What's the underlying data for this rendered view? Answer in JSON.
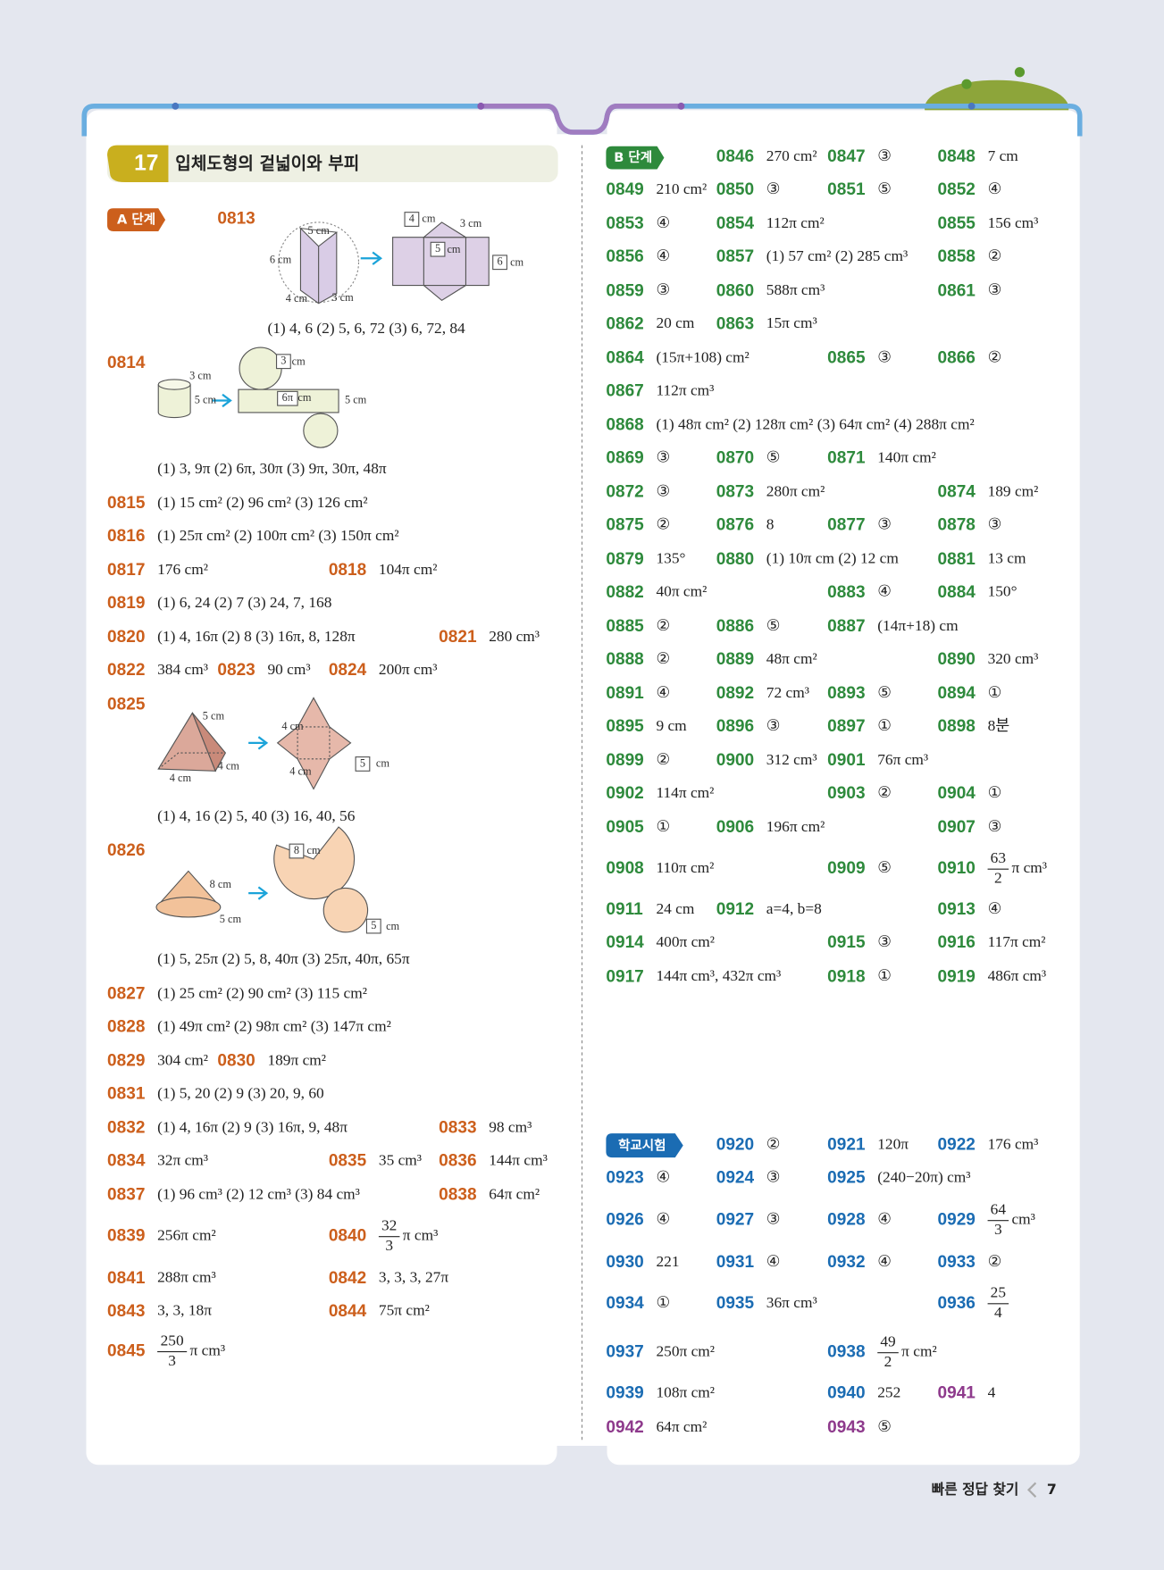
{
  "header": {
    "chapter": "17",
    "title": "입체도형의 겉넓이와 부피"
  },
  "section_a": {
    "badge": "A 단계",
    "color": "#cc5f1c",
    "items": [
      {
        "num": "0813",
        "answer": "(1) 4, 6  (2) 5, 6, 72  (3) 6, 72, 84",
        "figure": [
          "5 cm",
          "6 cm",
          "4 cm",
          "3 cm",
          "4",
          "cm",
          "3 cm",
          "5",
          "cm",
          "6",
          "cm"
        ]
      },
      {
        "num": "0814",
        "answer": "(1) 3, 9π  (2) 6π, 30π  (3) 9π, 30π, 48π",
        "figure": [
          "3 cm",
          "5 cm",
          "3",
          "cm",
          "6π",
          "cm",
          "5 cm"
        ]
      },
      {
        "num": "0815",
        "answer": "(1) 15 cm²  (2) 96 cm²  (3) 126 cm²"
      },
      {
        "num": "0816",
        "answer": "(1) 25π cm²  (2) 100π cm²  (3) 150π cm²"
      },
      {
        "num": "0817",
        "answer": "176 cm²"
      },
      {
        "num": "0818",
        "answer": "104π cm²"
      },
      {
        "num": "0819",
        "answer": "(1) 6, 24  (2) 7  (3) 24, 7, 168"
      },
      {
        "num": "0820",
        "answer": "(1) 4, 16π  (2) 8  (3) 16π, 8, 128π"
      },
      {
        "num": "0821",
        "answer": "280 cm³"
      },
      {
        "num": "0822",
        "answer": "384 cm³"
      },
      {
        "num": "0823",
        "answer": "90 cm³"
      },
      {
        "num": "0824",
        "answer": "200π cm³"
      },
      {
        "num": "0825",
        "answer": "(1) 4, 16  (2) 5, 40  (3) 16, 40, 56",
        "figure": [
          "5 cm",
          "4 cm",
          "4 cm",
          "4 cm",
          "4 cm",
          "5",
          "cm"
        ]
      },
      {
        "num": "0826",
        "answer": "(1) 5, 25π  (2) 5, 8, 40π  (3) 25π, 40π, 65π",
        "figure": [
          "8 cm",
          "5 cm",
          "8",
          "cm",
          "5",
          "cm"
        ]
      },
      {
        "num": "0827",
        "answer": "(1) 25 cm²  (2) 90 cm²  (3) 115 cm²"
      },
      {
        "num": "0828",
        "answer": "(1) 49π cm²  (2) 98π cm²  (3) 147π cm²"
      },
      {
        "num": "0829",
        "answer": "304 cm²"
      },
      {
        "num": "0830",
        "answer": "189π cm²"
      },
      {
        "num": "0831",
        "answer": "(1) 5, 20  (2) 9  (3) 20, 9, 60"
      },
      {
        "num": "0832",
        "answer": "(1) 4, 16π  (2) 9  (3) 16π, 9, 48π"
      },
      {
        "num": "0833",
        "answer": "98 cm³"
      },
      {
        "num": "0834",
        "answer": "32π cm³"
      },
      {
        "num": "0835",
        "answer": "35 cm³"
      },
      {
        "num": "0836",
        "answer": "144π cm³"
      },
      {
        "num": "0837",
        "answer": "(1) 96 cm³  (2) 12 cm³  (3) 84 cm³"
      },
      {
        "num": "0838",
        "answer": "64π cm²"
      },
      {
        "num": "0839",
        "answer": "256π cm²"
      },
      {
        "num": "0840",
        "answer": {
          "num": "32",
          "den": "3",
          "unit": "π cm³"
        }
      },
      {
        "num": "0841",
        "answer": "288π cm³"
      },
      {
        "num": "0842",
        "answer": "3, 3, 3, 27π"
      },
      {
        "num": "0843",
        "answer": "3, 3, 18π"
      },
      {
        "num": "0844",
        "answer": "75π cm²"
      },
      {
        "num": "0845",
        "answer": {
          "num": "250",
          "den": "3",
          "unit": "π cm³"
        }
      }
    ]
  },
  "section_b": {
    "badge": "B 단계",
    "color": "#2e8a3c",
    "rows": [
      [
        {
          "num": "0846",
          "answer": "270 cm²"
        },
        {
          "num": "0847",
          "answer": "③"
        },
        {
          "num": "0848",
          "answer": "7 cm"
        }
      ],
      [
        {
          "num": "0849",
          "answer": "210 cm²"
        },
        {
          "num": "0850",
          "answer": "③"
        },
        {
          "num": "0851",
          "answer": "⑤"
        },
        {
          "num": "0852",
          "answer": "④"
        }
      ],
      [
        {
          "num": "0853",
          "answer": "④"
        },
        {
          "num": "0854",
          "answer": "112π cm²"
        },
        {
          "num": "0855",
          "answer": "156 cm³"
        }
      ],
      [
        {
          "num": "0856",
          "answer": "④"
        },
        {
          "num": "0857",
          "answer": "(1) 57 cm²  (2) 285 cm³"
        },
        {
          "num": "0858",
          "answer": "②"
        }
      ],
      [
        {
          "num": "0859",
          "answer": "③"
        },
        {
          "num": "0860",
          "answer": "588π cm³"
        },
        {
          "num": "0861",
          "answer": "③"
        }
      ],
      [
        {
          "num": "0862",
          "answer": "20 cm"
        },
        {
          "num": "0863",
          "answer": "15π cm³"
        }
      ],
      [
        {
          "num": "0864",
          "answer": "(15π+108) cm²"
        },
        {
          "num": "0865",
          "answer": "③"
        },
        {
          "num": "0866",
          "answer": "②"
        }
      ],
      [
        {
          "num": "0867",
          "answer": "112π cm³"
        }
      ],
      [
        {
          "num": "0868",
          "answer": "(1) 48π cm²  (2) 128π cm²  (3) 64π cm²  (4) 288π cm²"
        }
      ],
      [
        {
          "num": "0869",
          "answer": "③"
        },
        {
          "num": "0870",
          "answer": "⑤"
        },
        {
          "num": "0871",
          "answer": "140π cm²"
        }
      ],
      [
        {
          "num": "0872",
          "answer": "③"
        },
        {
          "num": "0873",
          "answer": "280π cm²"
        },
        {
          "num": "0874",
          "answer": "189 cm²"
        }
      ],
      [
        {
          "num": "0875",
          "answer": "②"
        },
        {
          "num": "0876",
          "answer": "8"
        },
        {
          "num": "0877",
          "answer": "③"
        },
        {
          "num": "0878",
          "answer": "③"
        }
      ],
      [
        {
          "num": "0879",
          "answer": "135°"
        },
        {
          "num": "0880",
          "answer": "(1) 10π cm  (2) 12 cm"
        },
        {
          "num": "0881",
          "answer": "13 cm"
        }
      ],
      [
        {
          "num": "0882",
          "answer": "40π cm²"
        },
        {
          "num": "0883",
          "answer": "④"
        },
        {
          "num": "0884",
          "answer": "150°"
        }
      ],
      [
        {
          "num": "0885",
          "answer": "②"
        },
        {
          "num": "0886",
          "answer": "⑤"
        },
        {
          "num": "0887",
          "answer": "(14π+18) cm"
        }
      ],
      [
        {
          "num": "0888",
          "answer": "②"
        },
        {
          "num": "0889",
          "answer": "48π cm²"
        },
        {
          "num": "0890",
          "answer": "320 cm³"
        }
      ],
      [
        {
          "num": "0891",
          "answer": "④"
        },
        {
          "num": "0892",
          "answer": "72 cm³"
        },
        {
          "num": "0893",
          "answer": "⑤"
        },
        {
          "num": "0894",
          "answer": "①"
        }
      ],
      [
        {
          "num": "0895",
          "answer": "9 cm"
        },
        {
          "num": "0896",
          "answer": "③"
        },
        {
          "num": "0897",
          "answer": "①"
        },
        {
          "num": "0898",
          "answer": "8분"
        }
      ],
      [
        {
          "num": "0899",
          "answer": "②"
        },
        {
          "num": "0900",
          "answer": "312 cm³"
        },
        {
          "num": "0901",
          "answer": "76π cm³"
        }
      ],
      [
        {
          "num": "0902",
          "answer": "114π cm²"
        },
        {
          "num": "0903",
          "answer": "②"
        },
        {
          "num": "0904",
          "answer": "①"
        }
      ],
      [
        {
          "num": "0905",
          "answer": "①"
        },
        {
          "num": "0906",
          "answer": "196π cm²"
        },
        {
          "num": "0907",
          "answer": "③"
        }
      ],
      [
        {
          "num": "0908",
          "answer": "110π cm²"
        },
        {
          "num": "0909",
          "answer": "⑤"
        },
        {
          "num": "0910",
          "answer": {
            "num": "63",
            "den": "2",
            "unit": "π cm³"
          }
        }
      ],
      [
        {
          "num": "0911",
          "answer": "24 cm"
        },
        {
          "num": "0912",
          "answer": "a=4, b=8"
        },
        {
          "num": "0913",
          "answer": "④"
        }
      ],
      [
        {
          "num": "0914",
          "answer": "400π cm²"
        },
        {
          "num": "0915",
          "answer": "③"
        },
        {
          "num": "0916",
          "answer": "117π cm²"
        }
      ],
      [
        {
          "num": "0917",
          "answer": "144π cm³, 432π cm³"
        },
        {
          "num": "0918",
          "answer": "①"
        },
        {
          "num": "0919",
          "answer": "486π cm³"
        }
      ]
    ]
  },
  "school_test": {
    "badge": "학교시험",
    "color": "#1b6cb3",
    "rows": [
      [
        {
          "num": "0920",
          "answer": "②"
        },
        {
          "num": "0921",
          "answer": "120π"
        },
        {
          "num": "0922",
          "answer": "176 cm³"
        }
      ],
      [
        {
          "num": "0923",
          "answer": "④"
        },
        {
          "num": "0924",
          "answer": "③"
        },
        {
          "num": "0925",
          "answer": "(240−20π) cm³"
        }
      ],
      [
        {
          "num": "0926",
          "answer": "④"
        },
        {
          "num": "0927",
          "answer": "③"
        },
        {
          "num": "0928",
          "answer": "④"
        },
        {
          "num": "0929",
          "answer": {
            "num": "64",
            "den": "3",
            "unit": "cm³"
          }
        }
      ],
      [
        {
          "num": "0930",
          "answer": "221"
        },
        {
          "num": "0931",
          "answer": "④"
        },
        {
          "num": "0932",
          "answer": "④"
        },
        {
          "num": "0933",
          "answer": "②"
        }
      ],
      [
        {
          "num": "0934",
          "answer": "①"
        },
        {
          "num": "0935",
          "answer": "36π cm³"
        },
        {
          "num": "0936",
          "answer": {
            "num": "25",
            "den": "4"
          }
        }
      ],
      [
        {
          "num": "0937",
          "answer": "250π cm²"
        },
        {
          "num": "0938",
          "answer": {
            "num": "49",
            "den": "2",
            "unit": "π cm²"
          }
        }
      ],
      [
        {
          "num": "0939",
          "answer": "108π cm²"
        },
        {
          "num": "0940",
          "answer": "252"
        },
        {
          "num": "0941",
          "answer": "4",
          "color": "#8e3a8c"
        }
      ],
      [
        {
          "num": "0942",
          "answer": "64π cm²",
          "color": "#8e3a8c"
        },
        {
          "num": "0943",
          "answer": "⑤",
          "color": "#8e3a8c"
        }
      ]
    ]
  },
  "footer": {
    "label": "빠른 정답 찾기",
    "page": "7"
  }
}
